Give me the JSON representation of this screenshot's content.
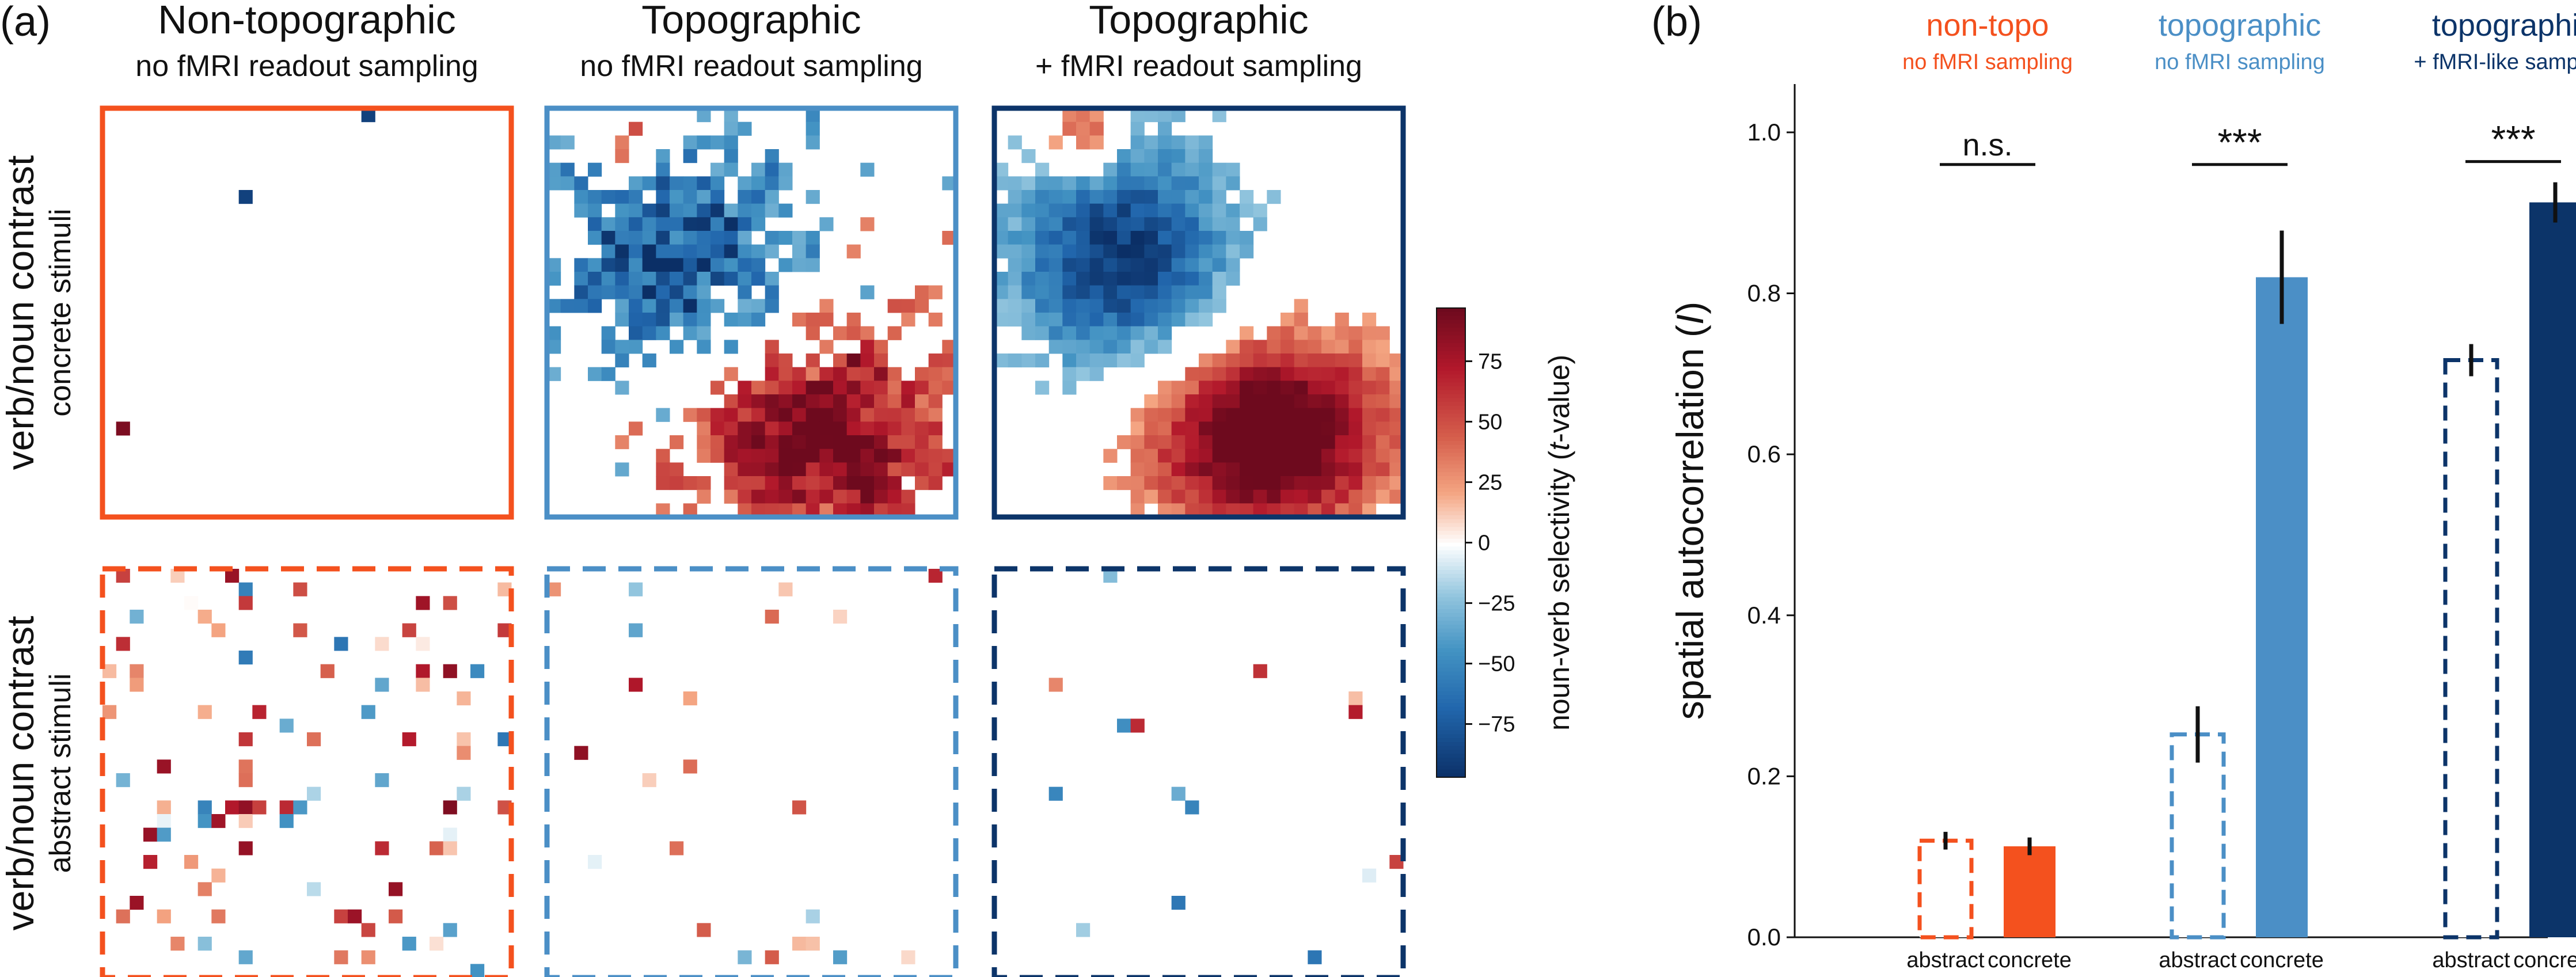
{
  "colors": {
    "orange": "#f4511e",
    "lightblue": "#4b8fc6",
    "darkblue": "#0c3469",
    "pos_peak": "#6e0a1e",
    "pos_mid": "#d6604d",
    "pos_light": "#f4a582",
    "neg_light": "#92c5de",
    "neg_mid": "#4393c3",
    "neg_peak": "#0b2f66"
  },
  "panel_a": {
    "label": "(a)",
    "columns": [
      {
        "title": "Non-topographic",
        "subtitle": "no fMRI readout sampling",
        "color_key": "orange",
        "model": "nontopo"
      },
      {
        "title": "Topographic",
        "subtitle": "no fMRI readout sampling",
        "color_key": "lightblue",
        "model": "topo"
      },
      {
        "title": "Topographic",
        "subtitle": "+ fMRI readout sampling",
        "color_key": "darkblue",
        "model": "topofmri"
      }
    ],
    "rows": [
      {
        "title": "verb/noun contrast",
        "subtitle": "concrete stimuli",
        "border": "solid",
        "condition": "concrete"
      },
      {
        "title": "verb/noun contrast",
        "subtitle": "abstract stimuli",
        "border": "dashed",
        "condition": "abstract"
      }
    ],
    "colorbar": {
      "label": "noun-verb selectivity (",
      "label_var": "t",
      "label_tail": "-value)",
      "ticks": [
        "75",
        "50",
        "25",
        "0",
        "−25",
        "−50",
        "−75"
      ],
      "tick_values": [
        75,
        50,
        25,
        0,
        -25,
        -50,
        -75
      ],
      "range": [
        -97,
        97
      ]
    }
  },
  "chart_data": {
    "type": "bar",
    "panel_label": "(b)",
    "ylabel": "spatial autocorrelation (",
    "ylabel_var": "I",
    "ylabel_tail": ")",
    "ylim": [
      0,
      1.06
    ],
    "yticks": [
      "0.0",
      "0.2",
      "0.4",
      "0.6",
      "0.8",
      "1.0"
    ],
    "ytick_values": [
      0.0,
      0.2,
      0.4,
      0.6,
      0.8,
      1.0
    ],
    "groups": [
      {
        "title": "non-topo",
        "subtitle": "no fMRI sampling",
        "color_key": "orange",
        "significance": "n.s.",
        "bars": [
          {
            "category": "abstract",
            "value": 0.12,
            "err": 0.011,
            "style": "hollow-dashed"
          },
          {
            "category": "concrete",
            "value": 0.113,
            "err": 0.011,
            "style": "filled"
          }
        ]
      },
      {
        "title": "topographic",
        "subtitle": "no fMRI sampling",
        "color_key": "lightblue",
        "significance": "***",
        "bars": [
          {
            "category": "abstract",
            "value": 0.252,
            "err": 0.035,
            "style": "hollow-dashed"
          },
          {
            "category": "concrete",
            "value": 0.82,
            "err": 0.058,
            "style": "filled"
          }
        ]
      },
      {
        "title": "topographic",
        "subtitle": "+ fMRI-like sampling",
        "color_key": "darkblue",
        "significance": "***",
        "bars": [
          {
            "category": "abstract",
            "value": 0.717,
            "err": 0.02,
            "style": "hollow-dashed"
          },
          {
            "category": "concrete",
            "value": 0.913,
            "err": 0.025,
            "style": "filled"
          }
        ]
      }
    ]
  }
}
